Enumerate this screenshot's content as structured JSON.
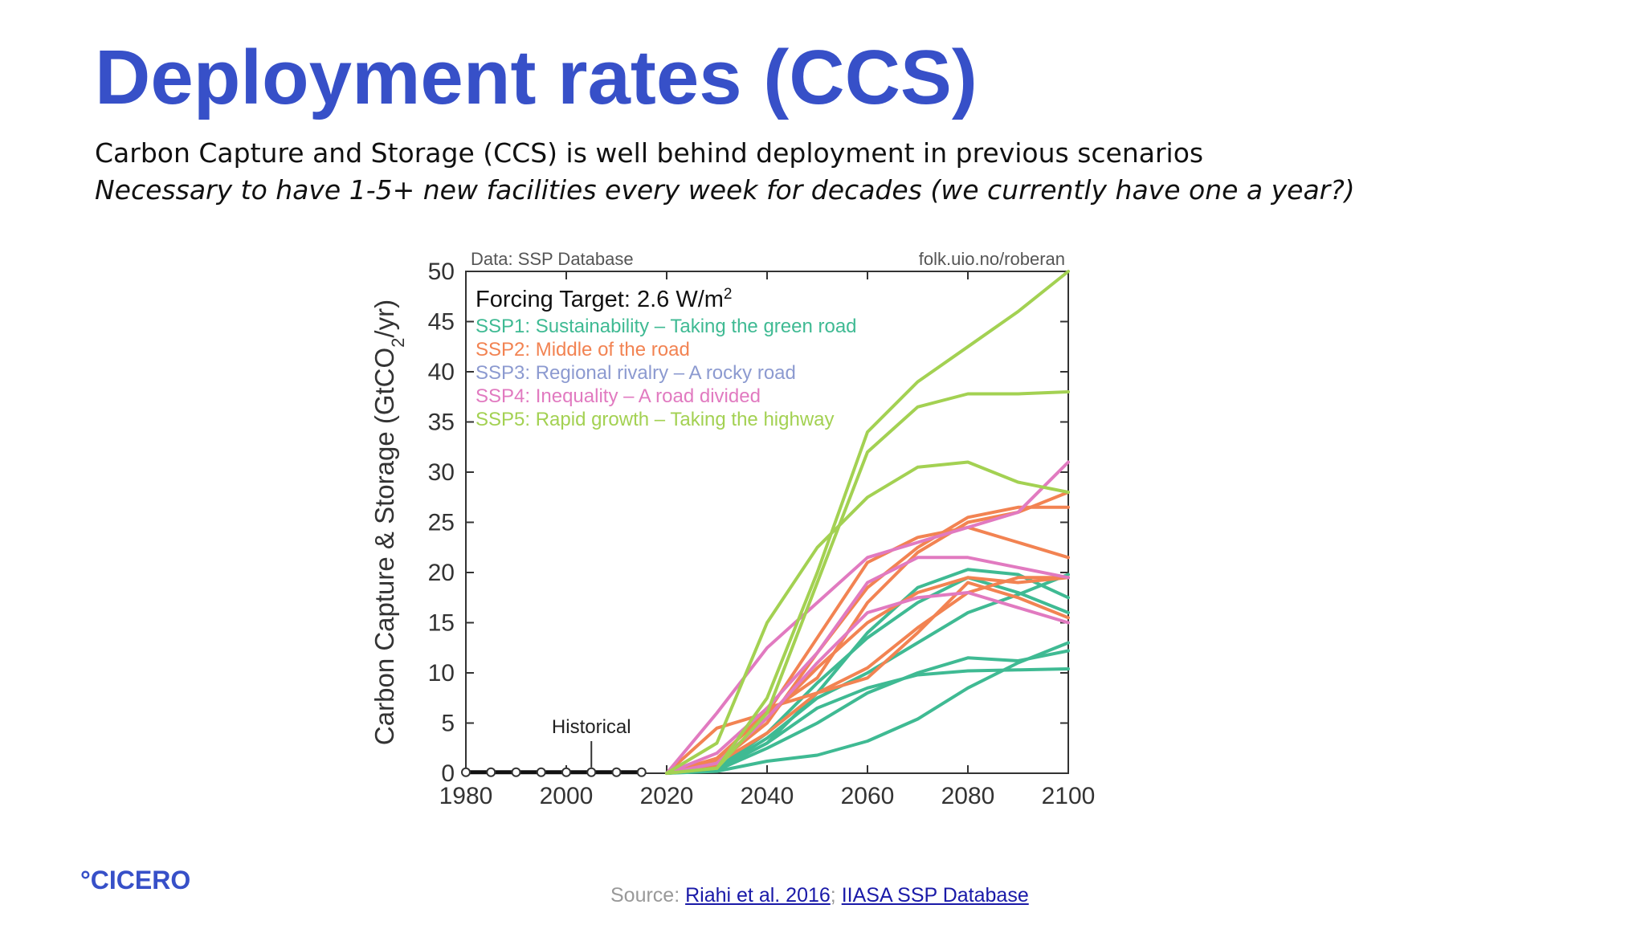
{
  "slide": {
    "title": "Deployment rates (CCS)",
    "subtitle_line1": "Carbon Capture and Storage (CCS) is well behind deployment in previous scenarios",
    "subtitle_line2": "Necessary to have 1-5+ new facilities every week for decades (we currently have one a year?)",
    "logo": "°CICERO",
    "source_prefix": "Source: ",
    "source_link1": "Riahi et al. 2016",
    "source_sep": ";",
    "source_link2": "IIASA SSP Database"
  },
  "chart_data": {
    "type": "line",
    "data_credit": "Data: SSP Database",
    "web_credit": "folk.uio.no/roberan",
    "legend_title": "Forcing Target: 2.6 W/m",
    "legend_title_sup": "2",
    "ylabel": "Carbon Capture & Storage (GtCO",
    "ylabel_sub": "2",
    "ylabel_end": "/yr)",
    "xlim": [
      1980,
      2100
    ],
    "ylim": [
      0,
      50
    ],
    "x_ticks": [
      "1980",
      "2000",
      "2020",
      "2040",
      "2060",
      "2080",
      "2100"
    ],
    "y_ticks": [
      "0",
      "5",
      "10",
      "15",
      "20",
      "25",
      "30",
      "35",
      "40",
      "45",
      "50"
    ],
    "historical_label": "Historical",
    "historical": {
      "x": [
        1980,
        1985,
        1990,
        1995,
        2000,
        2005,
        2010,
        2015
      ],
      "y": [
        0.1,
        0.1,
        0.1,
        0.1,
        0.1,
        0.1,
        0.1,
        0.1
      ]
    },
    "scenario_x": [
      2020,
      2030,
      2040,
      2050,
      2060,
      2070,
      2080,
      2090,
      2100
    ],
    "series": [
      {
        "name": "SSP1: Sustainability – Taking the green road",
        "color": "#3fba93",
        "lines": [
          [
            0,
            0.2,
            1.2,
            1.8,
            3.2,
            5.4,
            8.5,
            11.0,
            13.0
          ],
          [
            0,
            0.3,
            2.5,
            5.0,
            8.0,
            10.0,
            11.5,
            11.2,
            12.2
          ],
          [
            0,
            0.4,
            3.0,
            6.5,
            8.5,
            9.8,
            10.2,
            10.3,
            10.4
          ],
          [
            0,
            0.4,
            3.5,
            7.5,
            10.0,
            13.0,
            16.0,
            17.8,
            19.8
          ],
          [
            0,
            0.5,
            4.0,
            9.0,
            13.5,
            17.0,
            19.5,
            18.0,
            16.0
          ],
          [
            0,
            0.4,
            3.0,
            8.0,
            14.0,
            18.5,
            20.3,
            19.8,
            17.5
          ]
        ]
      },
      {
        "name": "SSP2: Middle of the road",
        "color": "#f28352",
        "lines": [
          [
            0,
            1.0,
            5.0,
            12.0,
            18.5,
            22.5,
            25.5,
            26.5,
            26.5
          ],
          [
            0,
            1.5,
            6.0,
            13.5,
            21.0,
            23.5,
            24.5,
            23.0,
            21.5
          ],
          [
            0,
            0.8,
            5.5,
            10.5,
            15.0,
            18.0,
            19.5,
            19.0,
            19.5
          ],
          [
            0,
            1.2,
            6.5,
            8.0,
            10.5,
            14.5,
            18.0,
            19.5,
            19.5
          ],
          [
            0,
            1.0,
            4.0,
            8.0,
            9.5,
            14.0,
            19.0,
            17.5,
            15.5
          ],
          [
            0,
            4.5,
            6.0,
            9.5,
            17.0,
            22.0,
            25.0,
            26.0,
            28.0
          ]
        ]
      },
      {
        "name": "SSP3: Regional rivalry – A rocky road",
        "color": "#8c9ad0",
        "lines": []
      },
      {
        "name": "SSP4: Inequality – A road divided",
        "color": "#e17ac0",
        "lines": [
          [
            0,
            6.0,
            12.5,
            17.0,
            21.5,
            23.0,
            24.5,
            26.0,
            31.0
          ],
          [
            0,
            2.0,
            6.5,
            12.0,
            19.0,
            21.5,
            21.5,
            20.5,
            19.5
          ],
          [
            0,
            1.0,
            5.5,
            11.0,
            16.0,
            17.5,
            18.0,
            16.5,
            15.0
          ]
        ]
      },
      {
        "name": "SSP5: Rapid growth – Taking the highway",
        "color": "#a3d152",
        "lines": [
          [
            0,
            0.5,
            7.5,
            20.0,
            34.0,
            39.0,
            42.5,
            46.0,
            50.0
          ],
          [
            0,
            0.5,
            6.0,
            19.0,
            32.0,
            36.5,
            37.8,
            37.8,
            38.0
          ],
          [
            0,
            3.0,
            15.0,
            22.5,
            27.5,
            30.5,
            31.0,
            29.0,
            28.0
          ]
        ]
      }
    ],
    "grid": false,
    "legend_position": "top-left"
  }
}
